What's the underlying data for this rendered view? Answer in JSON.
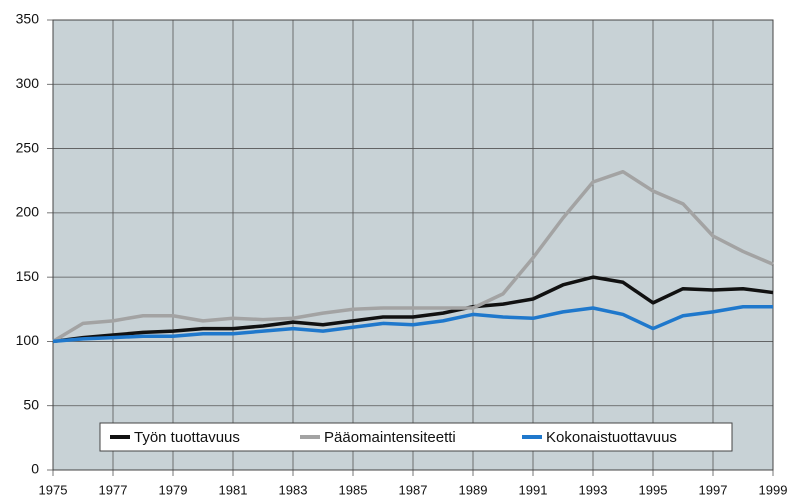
{
  "chart_data": {
    "type": "line",
    "x": [
      1975,
      1976,
      1977,
      1978,
      1979,
      1980,
      1981,
      1982,
      1983,
      1984,
      1985,
      1986,
      1987,
      1988,
      1989,
      1990,
      1991,
      1992,
      1993,
      1994,
      1995,
      1996,
      1997,
      1998,
      1999
    ],
    "series": [
      {
        "name": "Työn tuottavuus",
        "color": "#111111",
        "values": [
          100,
          103,
          105,
          107,
          108,
          110,
          110,
          112,
          115,
          113,
          116,
          119,
          119,
          122,
          127,
          129,
          133,
          144,
          150,
          146,
          130,
          141,
          140,
          141,
          138
        ]
      },
      {
        "name": "Pääomaintensiteetti",
        "color": "#a3a3a3",
        "values": [
          100,
          114,
          116,
          120,
          120,
          116,
          118,
          117,
          118,
          122,
          125,
          126,
          126,
          126,
          126,
          137,
          165,
          196,
          224,
          232,
          217,
          207,
          182,
          170,
          160
        ]
      },
      {
        "name": "Kokonaistuottavuus",
        "color": "#1f78cc",
        "values": [
          100,
          102,
          103,
          104,
          104,
          106,
          106,
          108,
          110,
          108,
          111,
          114,
          113,
          116,
          121,
          119,
          118,
          123,
          126,
          121,
          110,
          120,
          123,
          127,
          127
        ]
      }
    ],
    "xlim": [
      1975,
      1999
    ],
    "xticks": [
      1975,
      1977,
      1979,
      1981,
      1983,
      1985,
      1987,
      1989,
      1991,
      1993,
      1995,
      1997,
      1999
    ],
    "ylim": [
      0,
      350
    ],
    "yticks": [
      0,
      50,
      100,
      150,
      200,
      250,
      300,
      350
    ],
    "grid": true,
    "legend": "bottom"
  }
}
